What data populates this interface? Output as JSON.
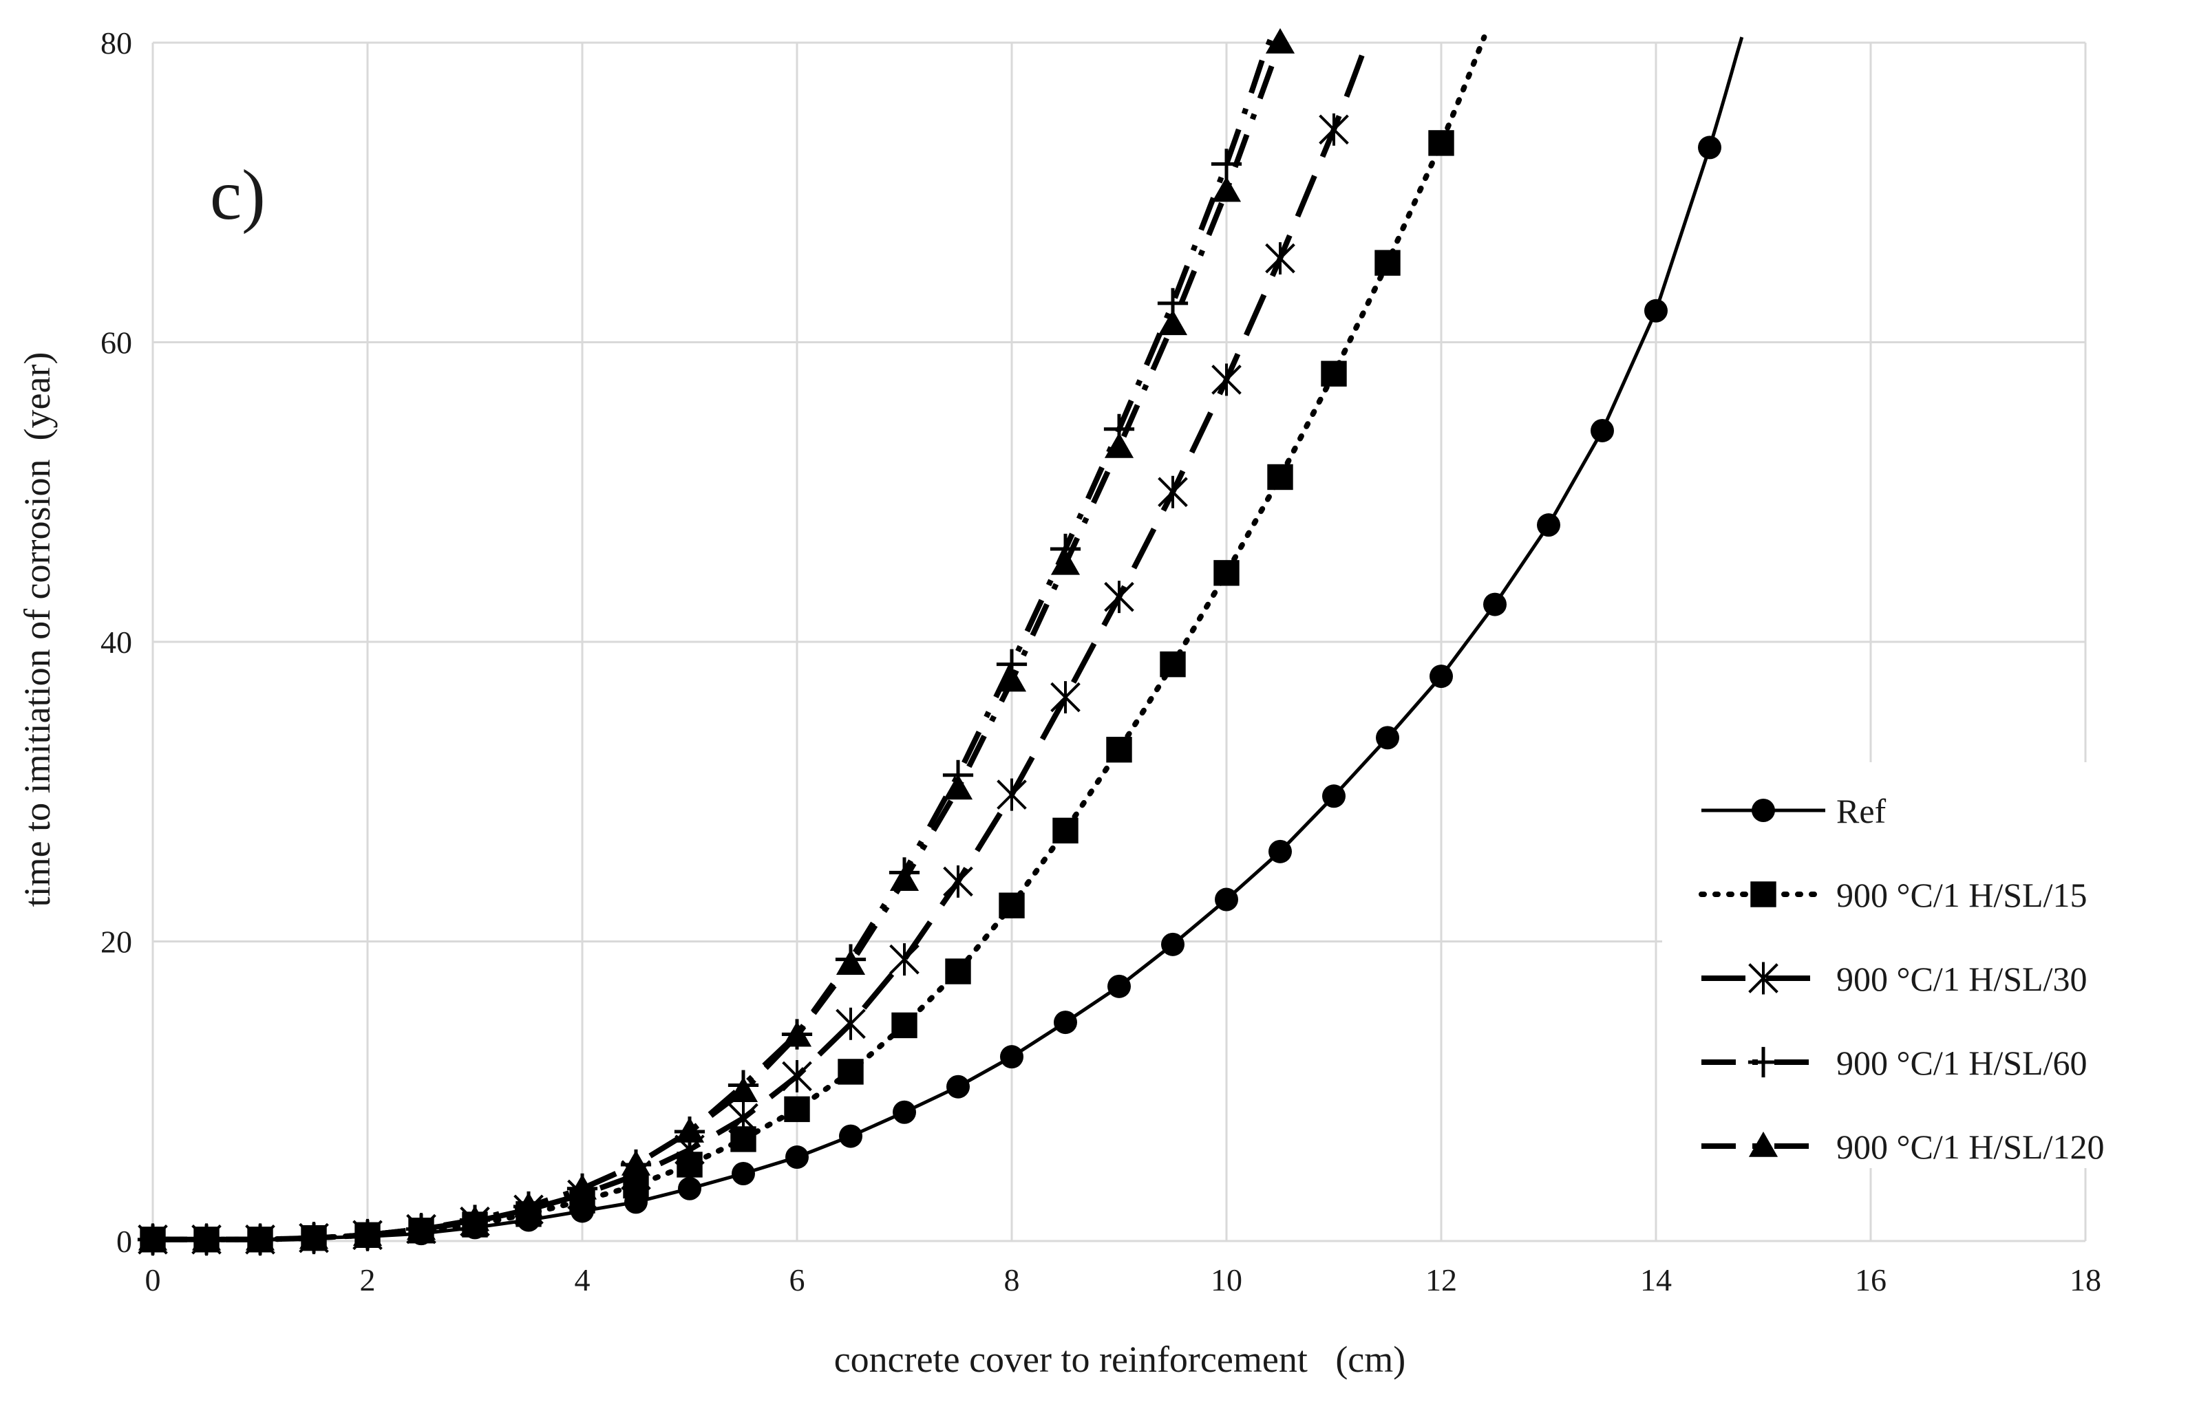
{
  "chart_data": {
    "type": "line",
    "panel_label": "c)",
    "xlabel": "concrete cover to reinforcement   (cm)",
    "ylabel": "time to imitiation of corrosion  (year)",
    "xlim": [
      0,
      18
    ],
    "ylim": [
      0,
      80
    ],
    "xticks": [
      "0",
      "2",
      "4",
      "6",
      "8",
      "10",
      "12",
      "14",
      "16",
      "18"
    ],
    "yticks": [
      "0",
      "20",
      "40",
      "60",
      "80"
    ],
    "grid": true,
    "legend_position": "right",
    "series": [
      {
        "name": "Ref",
        "marker": "circle",
        "dash": "solid",
        "x": [
          0,
          0.5,
          1,
          1.5,
          2,
          2.5,
          3,
          3.5,
          4,
          4.5,
          5,
          5.5,
          6,
          6.5,
          7,
          7.5,
          8,
          8.5,
          9,
          9.5,
          10,
          10.5,
          11,
          11.5,
          12,
          12.5,
          13,
          13.5,
          14,
          14.5
        ],
        "y": [
          0.1,
          0.1,
          0.1,
          0.2,
          0.3,
          0.5,
          0.9,
          1.4,
          2.0,
          2.6,
          3.5,
          4.5,
          5.6,
          7.0,
          8.6,
          10.3,
          12.3,
          14.6,
          17.0,
          19.8,
          22.8,
          26.0,
          29.7,
          33.6,
          37.7,
          42.5,
          47.8,
          54.1,
          62.1,
          73.0
        ],
        "curve_extends_to_x": 14.8
      },
      {
        "name": "900 °C/1 H/SL/15",
        "marker": "square",
        "dash": "dotted",
        "x": [
          0,
          0.5,
          1,
          1.5,
          2,
          2.5,
          3,
          3.5,
          4,
          4.5,
          5,
          5.5,
          6,
          6.5,
          7,
          7.5,
          8,
          8.5,
          9,
          9.5,
          10,
          10.5,
          11,
          11.5,
          12
        ],
        "y": [
          0.1,
          0.1,
          0.1,
          0.2,
          0.4,
          0.7,
          1.1,
          1.8,
          2.7,
          3.7,
          5.1,
          6.8,
          8.8,
          11.3,
          14.4,
          18.0,
          22.4,
          27.4,
          32.8,
          38.5,
          44.6,
          51.0,
          57.9,
          65.3,
          73.3
        ],
        "curve_extends_to_x": 12.4
      },
      {
        "name": "900 °C/1 H/SL/30",
        "marker": "asterisk",
        "dash": "long-dash",
        "x": [
          0,
          0.5,
          1,
          1.5,
          2,
          2.5,
          3,
          3.5,
          4,
          4.5,
          5,
          5.5,
          6,
          6.5,
          7,
          7.5,
          8,
          8.5,
          9,
          9.5,
          10,
          10.5,
          11
        ],
        "y": [
          0.1,
          0.1,
          0.1,
          0.2,
          0.4,
          0.8,
          1.3,
          2.1,
          3.1,
          4.4,
          6.1,
          8.2,
          11.0,
          14.5,
          18.8,
          24.0,
          29.8,
          36.3,
          43.0,
          50.0,
          57.5,
          65.6,
          74.2
        ],
        "curve_extends_to_x": 11.3
      },
      {
        "name": "900 °C/1 H/SL/60",
        "marker": "plus",
        "dash": "dash-dot",
        "x": [
          0,
          0.5,
          1,
          1.5,
          2,
          2.5,
          3,
          3.5,
          4,
          4.5,
          5,
          5.5,
          6,
          6.5,
          7,
          7.5,
          8,
          8.5,
          9,
          9.5,
          10
        ],
        "y": [
          0.1,
          0.1,
          0.1,
          0.2,
          0.4,
          0.8,
          1.4,
          2.3,
          3.5,
          5.1,
          7.3,
          10.4,
          13.8,
          18.8,
          24.6,
          31.1,
          38.5,
          46.2,
          54.2,
          62.6,
          71.9
        ],
        "curve_extends_to_x": 10.5
      },
      {
        "name": "900 °C/1 H/SL/120",
        "marker": "triangle",
        "dash": "dash-dot",
        "x": [
          0,
          0.5,
          1,
          1.5,
          2,
          2.5,
          3,
          3.5,
          4,
          4.5,
          5,
          5.5,
          6,
          6.5,
          7,
          7.5,
          8,
          8.5,
          9,
          9.5,
          10,
          10.5
        ],
        "y": [
          0.1,
          0.1,
          0.1,
          0.2,
          0.4,
          0.8,
          1.4,
          2.3,
          3.5,
          5.1,
          7.3,
          10.0,
          13.7,
          18.5,
          24.1,
          30.2,
          37.4,
          45.2,
          53.0,
          61.2,
          70.1,
          80.0
        ],
        "curve_extends_to_x": 10.5
      }
    ]
  }
}
